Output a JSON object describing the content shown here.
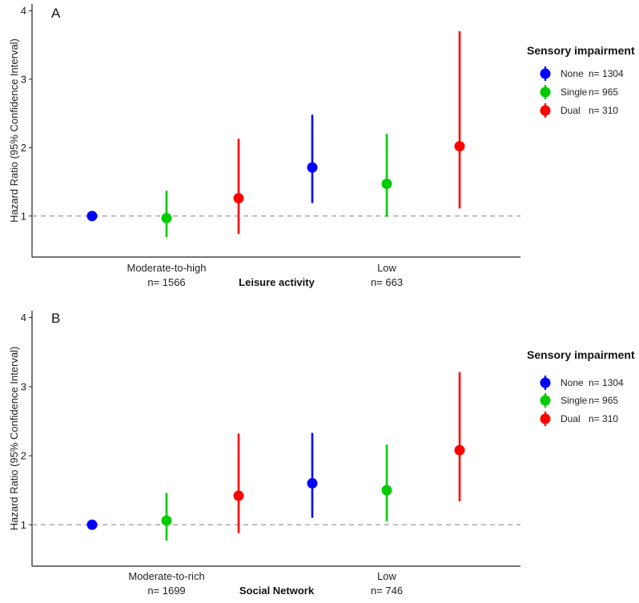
{
  "chart_data": [
    {
      "type": "scatter",
      "panel_label": "A",
      "xlabel": "Leisure activity",
      "ylabel": "Hazard Ratio (95% Confidence Interval)",
      "ylim": [
        0.4,
        4.1
      ],
      "yticks": [
        1,
        2,
        3,
        4
      ],
      "reference_line": 1,
      "groups": [
        {
          "label": "Moderate-to-high",
          "n_label": "n= 1566"
        },
        {
          "label": "Low",
          "n_label": "n= 663"
        }
      ],
      "series": [
        {
          "name": "None",
          "n_label": "n= 1304",
          "color": "#0000ff",
          "points": [
            {
              "group": 0,
              "hr": 1.0,
              "lo": 1.0,
              "hi": 1.0
            },
            {
              "group": 1,
              "hr": 1.71,
              "lo": 1.19,
              "hi": 2.48
            }
          ]
        },
        {
          "name": "Single",
          "n_label": "n= 965",
          "color": "#00cc00",
          "points": [
            {
              "group": 0,
              "hr": 0.97,
              "lo": 0.69,
              "hi": 1.37
            },
            {
              "group": 1,
              "hr": 1.47,
              "lo": 0.99,
              "hi": 2.2
            }
          ]
        },
        {
          "name": "Dual",
          "n_label": "n= 310",
          "color": "#ff0000",
          "points": [
            {
              "group": 0,
              "hr": 1.26,
              "lo": 0.74,
              "hi": 2.13
            },
            {
              "group": 1,
              "hr": 2.02,
              "lo": 1.11,
              "hi": 3.7
            }
          ]
        }
      ],
      "legend_title": "Sensory impairment"
    },
    {
      "type": "scatter",
      "panel_label": "B",
      "xlabel": "Social Network",
      "ylabel": "Hazard Ratio (95% Confidence Interval)",
      "ylim": [
        0.4,
        4.1
      ],
      "yticks": [
        1,
        2,
        3,
        4
      ],
      "reference_line": 1,
      "groups": [
        {
          "label": "Moderate-to-rich",
          "n_label": "n= 1699"
        },
        {
          "label": "Low",
          "n_label": "n= 746"
        }
      ],
      "series": [
        {
          "name": "None",
          "n_label": "n= 1304",
          "color": "#0000ff",
          "points": [
            {
              "group": 0,
              "hr": 1.0,
              "lo": 1.0,
              "hi": 1.0
            },
            {
              "group": 1,
              "hr": 1.6,
              "lo": 1.1,
              "hi": 2.33
            }
          ]
        },
        {
          "name": "Single",
          "n_label": "n= 965",
          "color": "#00cc00",
          "points": [
            {
              "group": 0,
              "hr": 1.06,
              "lo": 0.77,
              "hi": 1.46
            },
            {
              "group": 1,
              "hr": 1.5,
              "lo": 1.05,
              "hi": 2.16
            }
          ]
        },
        {
          "name": "Dual",
          "n_label": "n= 310",
          "color": "#ff0000",
          "points": [
            {
              "group": 0,
              "hr": 1.42,
              "lo": 0.88,
              "hi": 2.32
            },
            {
              "group": 1,
              "hr": 2.08,
              "lo": 1.34,
              "hi": 3.21
            }
          ]
        }
      ],
      "legend_title": "Sensory impairment"
    }
  ]
}
